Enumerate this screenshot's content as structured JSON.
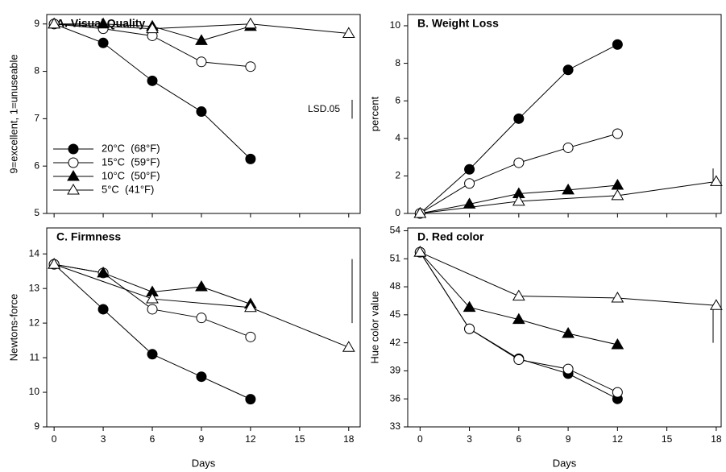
{
  "chart_data": [
    {
      "type": "line",
      "title": "A.  Visual Quality",
      "ylabel": "9=excellent, 1=unuseable",
      "xlim": [
        -0.45,
        18.7
      ],
      "xticks": [
        0,
        3,
        6,
        9,
        12,
        15,
        18
      ],
      "ylim": [
        5,
        9.2
      ],
      "yticks": [
        5,
        6,
        7,
        8,
        9
      ],
      "lsd": {
        "label": "LSD.05",
        "values": [
          7.0,
          7.4
        ]
      },
      "legend": "lower left",
      "series": [
        {
          "name": "20°C  (68°F)",
          "color": "#000000",
          "marker": "circle",
          "filled": true,
          "x": [
            0,
            3,
            6,
            9,
            12
          ],
          "values": [
            9,
            8.6,
            7.8,
            7.15,
            6.15
          ]
        },
        {
          "name": "15°C  (59°F)",
          "color": "#000000",
          "marker": "circle",
          "filled": false,
          "x": [
            0,
            3,
            6,
            9,
            12
          ],
          "values": [
            9,
            8.9,
            8.75,
            8.2,
            8.1
          ]
        },
        {
          "name": "10°C  (50°F)",
          "color": "#000000",
          "marker": "triangle",
          "filled": true,
          "x": [
            0,
            3,
            6,
            9,
            12
          ],
          "values": [
            9,
            9.0,
            8.95,
            8.65,
            8.95
          ]
        },
        {
          "name": "5°C  (41°F)",
          "color": "#000000",
          "marker": "triangle",
          "filled": false,
          "x": [
            0,
            6,
            12,
            18
          ],
          "values": [
            9,
            8.9,
            9.0,
            8.8
          ]
        }
      ]
    },
    {
      "type": "line",
      "title": "B.  Weight Loss",
      "ylabel": "percent",
      "xlim": [
        -0.75,
        18.3
      ],
      "xticks": [
        0,
        3,
        6,
        9,
        12,
        15,
        18
      ],
      "ylim": [
        0,
        10.6
      ],
      "yticks": [
        0,
        2,
        4,
        6,
        8,
        10
      ],
      "lsd": {
        "values": [
          1.6,
          2.4
        ]
      },
      "series": [
        {
          "color": "#000000",
          "marker": "circle",
          "filled": true,
          "x": [
            0,
            3,
            6,
            9,
            12
          ],
          "values": [
            0,
            2.35,
            5.05,
            7.65,
            9.0
          ]
        },
        {
          "color": "#000000",
          "marker": "circle",
          "filled": false,
          "x": [
            0,
            3,
            6,
            9,
            12
          ],
          "values": [
            0,
            1.6,
            2.7,
            3.5,
            4.25
          ]
        },
        {
          "color": "#000000",
          "marker": "triangle",
          "filled": true,
          "x": [
            0,
            3,
            6,
            9,
            12
          ],
          "values": [
            0,
            0.5,
            1.05,
            1.25,
            1.5
          ]
        },
        {
          "color": "#000000",
          "marker": "triangle",
          "filled": false,
          "x": [
            0,
            6,
            12,
            18
          ],
          "values": [
            0,
            0.65,
            0.95,
            1.7
          ]
        }
      ]
    },
    {
      "type": "line",
      "title": "C.  Firmness",
      "ylabel": "Newtons-force",
      "xlabel": "Days",
      "xlim": [
        -0.45,
        18.7
      ],
      "xticks": [
        0,
        3,
        6,
        9,
        12,
        15,
        18
      ],
      "ylim": [
        9,
        14.75
      ],
      "yticks": [
        9,
        10,
        11,
        12,
        13,
        14
      ],
      "lsd": {
        "values": [
          12.0,
          13.85
        ]
      },
      "series": [
        {
          "color": "#000000",
          "marker": "circle",
          "filled": true,
          "x": [
            0,
            3,
            6,
            9,
            12
          ],
          "values": [
            13.7,
            12.4,
            11.1,
            10.45,
            9.8
          ]
        },
        {
          "color": "#000000",
          "marker": "circle",
          "filled": false,
          "x": [
            0,
            3,
            6,
            9,
            12
          ],
          "values": [
            13.7,
            13.45,
            12.4,
            12.15,
            11.6
          ]
        },
        {
          "color": "#000000",
          "marker": "triangle",
          "filled": true,
          "x": [
            0,
            3,
            6,
            9,
            12
          ],
          "values": [
            13.7,
            13.45,
            12.9,
            13.05,
            12.55
          ]
        },
        {
          "color": "#000000",
          "marker": "triangle",
          "filled": false,
          "x": [
            0,
            6,
            12,
            18
          ],
          "values": [
            13.7,
            12.7,
            12.45,
            11.3
          ]
        }
      ]
    },
    {
      "type": "line",
      "title": "D.  Red color",
      "ylabel": "Hue color value",
      "xlabel": "Days",
      "xlim": [
        -0.75,
        18.3
      ],
      "xticks": [
        0,
        3,
        6,
        9,
        12,
        15,
        18
      ],
      "ylim": [
        33,
        54.3
      ],
      "yticks": [
        33,
        36,
        39,
        42,
        45,
        48,
        51,
        54
      ],
      "lsd": {
        "values": [
          42,
          46
        ]
      },
      "series": [
        {
          "color": "#000000",
          "marker": "circle",
          "filled": true,
          "x": [
            0,
            3,
            6,
            9,
            12
          ],
          "values": [
            51.7,
            43.5,
            40.3,
            38.7,
            36
          ]
        },
        {
          "color": "#000000",
          "marker": "circle",
          "filled": false,
          "x": [
            0,
            3,
            6,
            9,
            12
          ],
          "values": [
            51.7,
            43.5,
            40.2,
            39.2,
            36.7
          ]
        },
        {
          "color": "#000000",
          "marker": "triangle",
          "filled": true,
          "x": [
            0,
            3,
            6,
            9,
            12
          ],
          "values": [
            51.7,
            45.8,
            44.5,
            43,
            41.8
          ]
        },
        {
          "color": "#000000",
          "marker": "triangle",
          "filled": false,
          "x": [
            0,
            6,
            12,
            18
          ],
          "values": [
            51.7,
            47,
            46.8,
            46
          ]
        }
      ]
    }
  ]
}
